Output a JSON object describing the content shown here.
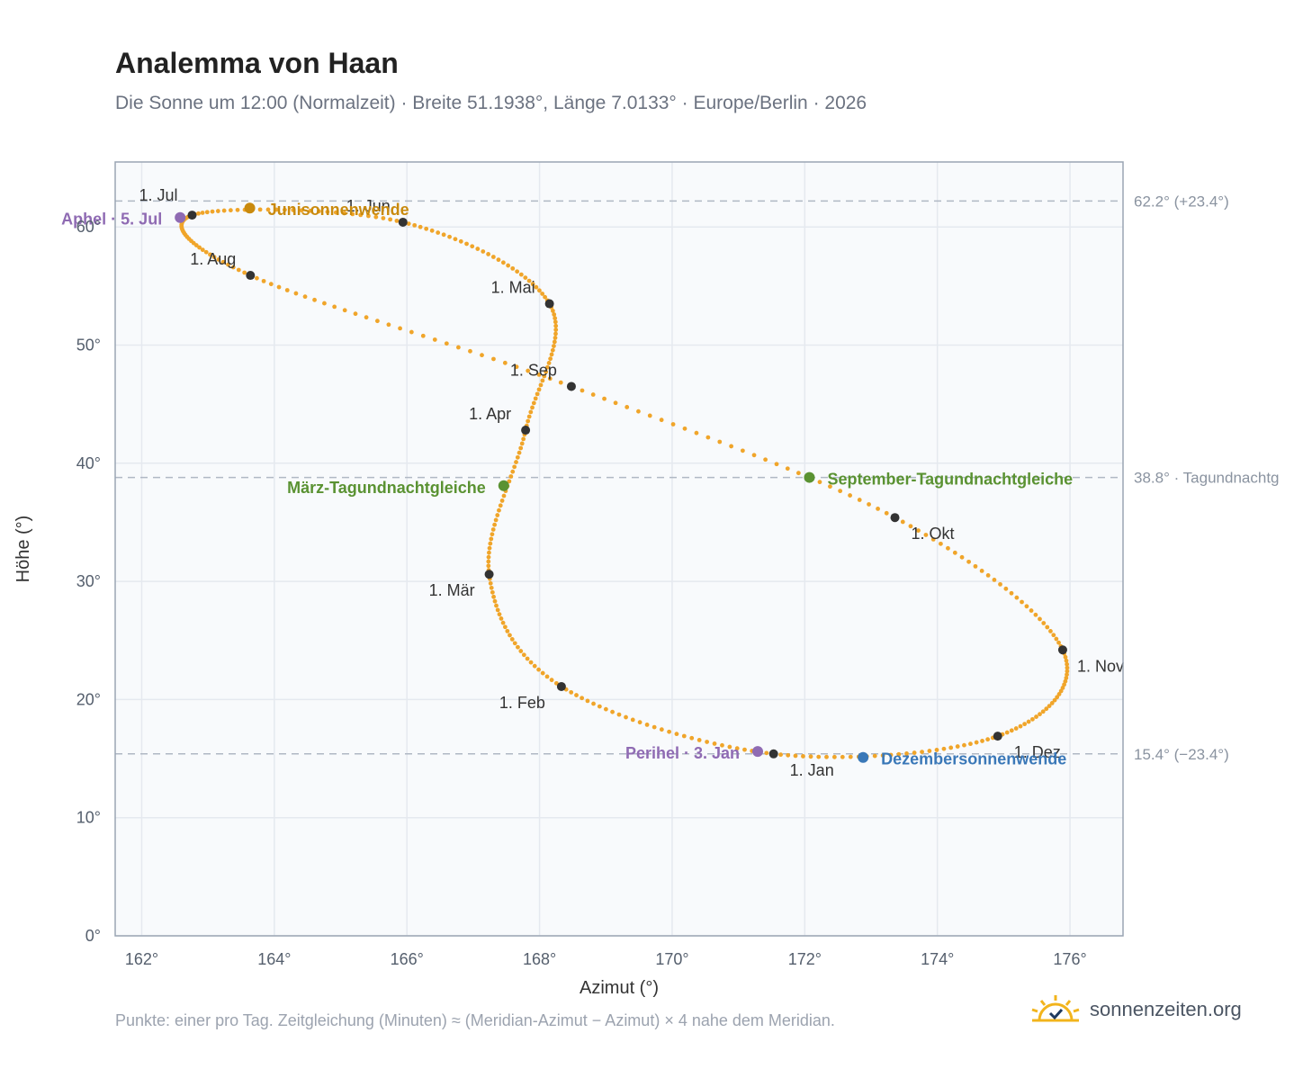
{
  "header": {
    "title": "Analemma von Haan",
    "subtitle": "Die Sonne um 12:00 (Normalzeit) · Breite 51.1938°, Länge 7.0133° · Europe/Berlin · 2026"
  },
  "footer": {
    "note": "Punkte: einer pro Tag. Zeitgleichung (Minuten) ≈ (Meridian-Azimut − Azimut) × 4 nahe dem Meridian.",
    "brand": "sonnenzeiten.org"
  },
  "colors": {
    "curve": "#f0a52a",
    "month_marker": "#333333",
    "solstice_june": "#c98a0e",
    "solstice_december": "#3a78b8",
    "equinox": "#5a9232",
    "apsis": "#8f6bb3",
    "reference_line": "#b0b8c4",
    "plot_background": "#f8fafc",
    "grid": "#e5e9ef"
  },
  "chart_data": {
    "type": "scatter",
    "xlabel": "Azimut (°)",
    "ylabel": "Höhe (°)",
    "xlim": [
      161.6,
      176.8
    ],
    "ylim": [
      0,
      65.5
    ],
    "x_ticks": [
      "162°",
      "164°",
      "166°",
      "168°",
      "170°",
      "172°",
      "174°",
      "176°"
    ],
    "y_ticks": [
      "0°",
      "10°",
      "20°",
      "30°",
      "40°",
      "50°",
      "60°"
    ],
    "grid": true,
    "reference_lines": [
      {
        "y": 62.2,
        "label": "62.2° (+23.4°)"
      },
      {
        "y": 38.8,
        "label": "38.8° · Tagundnachtg"
      },
      {
        "y": 15.4,
        "label": "15.4° (−23.4°)"
      }
    ],
    "month_markers": [
      {
        "label": "1. Jan",
        "az": 171.53,
        "alt": 15.4
      },
      {
        "label": "1. Feb",
        "az": 168.33,
        "alt": 21.1
      },
      {
        "label": "1. Mär",
        "az": 167.24,
        "alt": 30.6
      },
      {
        "label": "1. Apr",
        "az": 167.79,
        "alt": 42.8
      },
      {
        "label": "1. Mai",
        "az": 168.15,
        "alt": 53.5
      },
      {
        "label": "1. Jun",
        "az": 165.94,
        "alt": 60.4
      },
      {
        "label": "1. Jul",
        "az": 162.76,
        "alt": 61.0
      },
      {
        "label": "1. Aug",
        "az": 163.64,
        "alt": 55.9
      },
      {
        "label": "1. Sep",
        "az": 168.48,
        "alt": 46.5
      },
      {
        "label": "1. Okt",
        "az": 173.36,
        "alt": 35.4
      },
      {
        "label": "1. Nov",
        "az": 175.89,
        "alt": 24.2
      },
      {
        "label": "1. Dez",
        "az": 174.91,
        "alt": 16.9
      }
    ],
    "events": [
      {
        "label": "Junisonnenwende",
        "az": 163.63,
        "alt": 61.6,
        "kind": "solstice_june"
      },
      {
        "label": "Dezembersonnenwende",
        "az": 172.88,
        "alt": 15.1,
        "kind": "solstice_december"
      },
      {
        "label": "März-Tagundnachtgleiche",
        "az": 167.46,
        "alt": 38.1,
        "kind": "equinox"
      },
      {
        "label": "September-Tagundnachtgleiche",
        "az": 172.07,
        "alt": 38.8,
        "kind": "equinox"
      },
      {
        "label": "Perihel · 3. Jan",
        "az": 171.29,
        "alt": 15.6,
        "kind": "apsis"
      },
      {
        "label": "Aphel · 5. Jul",
        "az": 162.58,
        "alt": 60.8,
        "kind": "apsis"
      }
    ],
    "daily_points": "365 Punkte, einer pro Tag"
  }
}
